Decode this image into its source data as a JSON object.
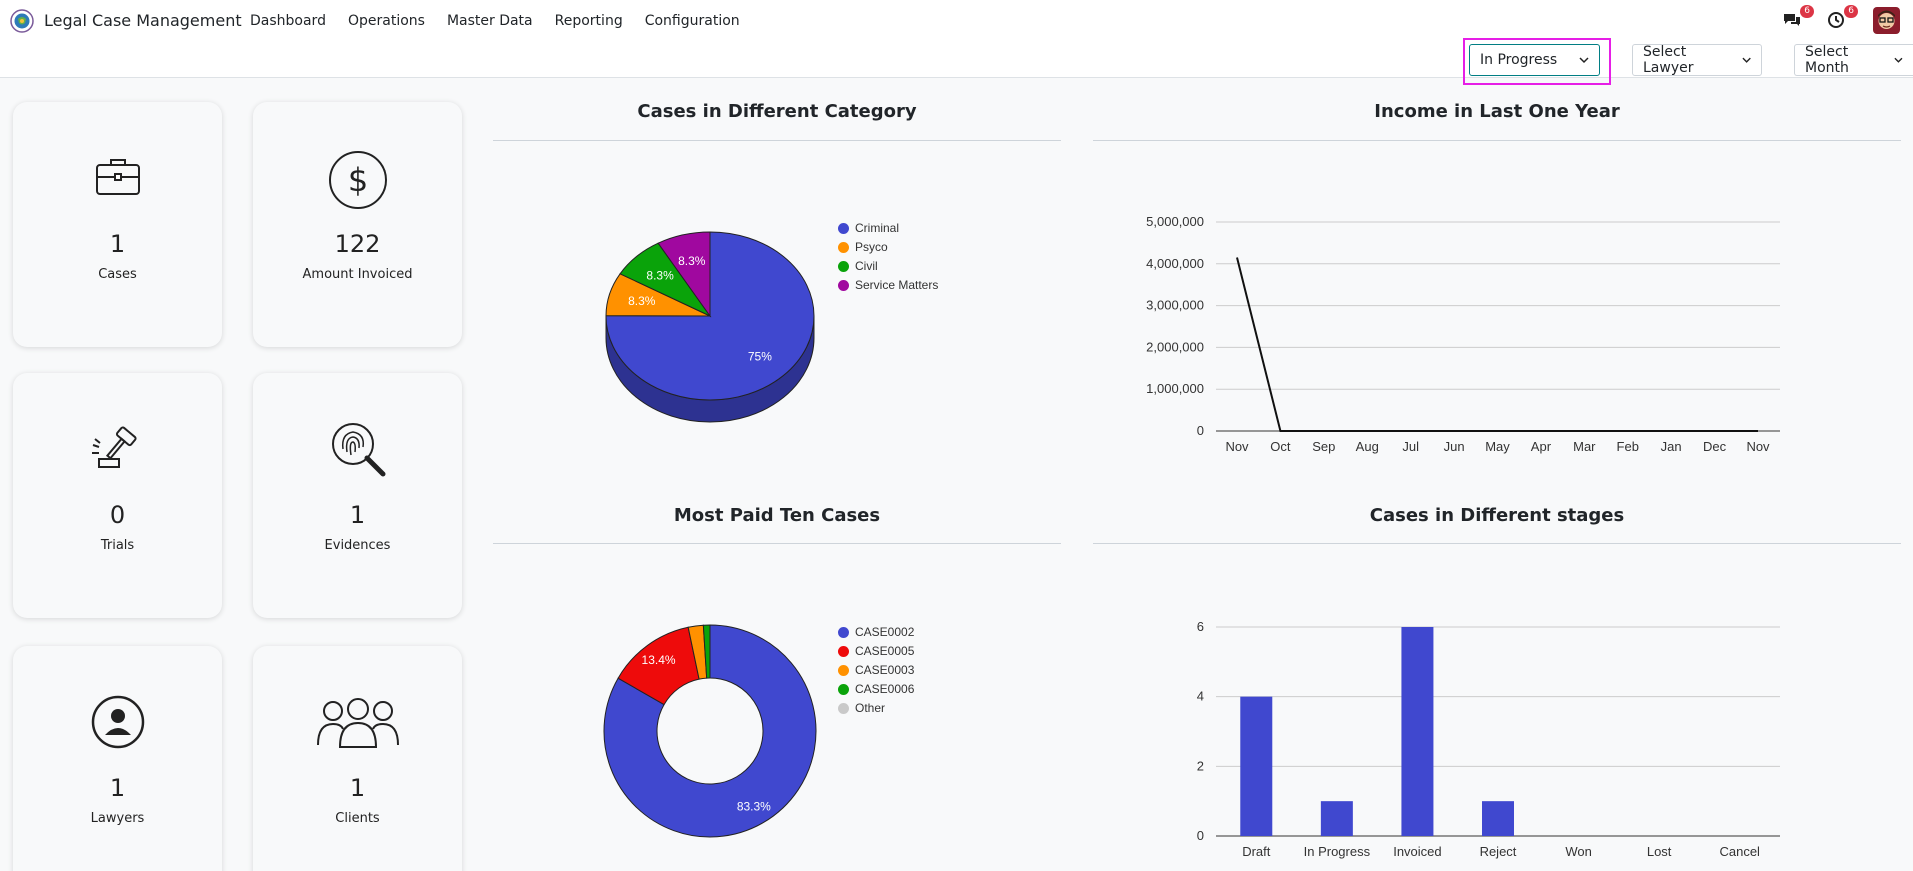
{
  "app": {
    "name": "Legal Case Management"
  },
  "menu": [
    "Dashboard",
    "Operations",
    "Master Data",
    "Reporting",
    "Configuration"
  ],
  "notifications": {
    "messages_count": "6",
    "activities_count": "6"
  },
  "filters": {
    "status": "In Progress",
    "lawyer": "Select Lawyer",
    "month": "Select Month"
  },
  "cards": [
    {
      "value": "1",
      "label": "Cases",
      "icon": "briefcase-icon"
    },
    {
      "value": "122",
      "label": "Amount Invoiced",
      "icon": "dollar-icon"
    },
    {
      "value": "0",
      "label": "Trials",
      "icon": "gavel-icon"
    },
    {
      "value": "1",
      "label": "Evidences",
      "icon": "fingerprint-search-icon"
    },
    {
      "value": "1",
      "label": "Lawyers",
      "icon": "lawyer-icon"
    },
    {
      "value": "1",
      "label": "Clients",
      "icon": "clients-icon"
    }
  ],
  "colors": {
    "blue": "#4048cf",
    "orange": "#ff9100",
    "green": "#0aa30a",
    "purple": "#a0089f",
    "red": "#ee0b0b",
    "grey": "#c9c9c9",
    "accent": "#017e84",
    "focus": "#e61ee6"
  },
  "chart_data": [
    {
      "id": "category",
      "type": "pie",
      "title": "Cases in Different Category",
      "slices": [
        {
          "name": "Criminal",
          "value": 75,
          "label": "75%",
          "color": "#4048cf"
        },
        {
          "name": "Psyco",
          "value": 8.3,
          "label": "8.3%",
          "color": "#ff9100"
        },
        {
          "name": "Civil",
          "value": 8.3,
          "label": "8.3%",
          "color": "#0aa30a"
        },
        {
          "name": "Service Matters",
          "value": 8.3,
          "label": "8.3%",
          "color": "#a0089f"
        }
      ],
      "legend_position": "right"
    },
    {
      "id": "income",
      "type": "line",
      "title": "Income in Last One Year",
      "categories": [
        "Nov",
        "Oct",
        "Sep",
        "Aug",
        "Jul",
        "Jun",
        "May",
        "Apr",
        "Mar",
        "Feb",
        "Jan",
        "Dec",
        "Nov"
      ],
      "values": [
        4150000,
        0,
        0,
        0,
        0,
        0,
        0,
        0,
        0,
        0,
        0,
        0,
        0
      ],
      "y_ticks": [
        "0",
        "1,000,000",
        "2,000,000",
        "3,000,000",
        "4,000,000",
        "5,000,000"
      ],
      "ylim": [
        0,
        5000000
      ],
      "grid": true
    },
    {
      "id": "paid",
      "type": "pie",
      "title": "Most Paid Ten Cases",
      "slices": [
        {
          "name": "CASE0002",
          "value": 83.3,
          "label": "83.3%",
          "color": "#4048cf"
        },
        {
          "name": "CASE0005",
          "value": 13.4,
          "label": "13.4%",
          "color": "#ee0b0b"
        },
        {
          "name": "CASE0003",
          "value": 2.3,
          "label": "",
          "color": "#ff9100"
        },
        {
          "name": "CASE0006",
          "value": 1.0,
          "label": "",
          "color": "#0aa30a"
        },
        {
          "name": "Other",
          "value": 0,
          "label": "",
          "color": "#c9c9c9"
        }
      ],
      "legend_position": "right"
    },
    {
      "id": "stages",
      "type": "bar",
      "title": "Cases in Different stages",
      "categories": [
        "Draft",
        "In Progress",
        "Invoiced",
        "Reject",
        "Won",
        "Lost",
        "Cancel"
      ],
      "values": [
        4,
        1,
        6,
        1,
        0,
        0,
        0
      ],
      "y_ticks": [
        "0",
        "2",
        "4",
        "6"
      ],
      "ylim": [
        0,
        6
      ],
      "grid": true
    }
  ]
}
